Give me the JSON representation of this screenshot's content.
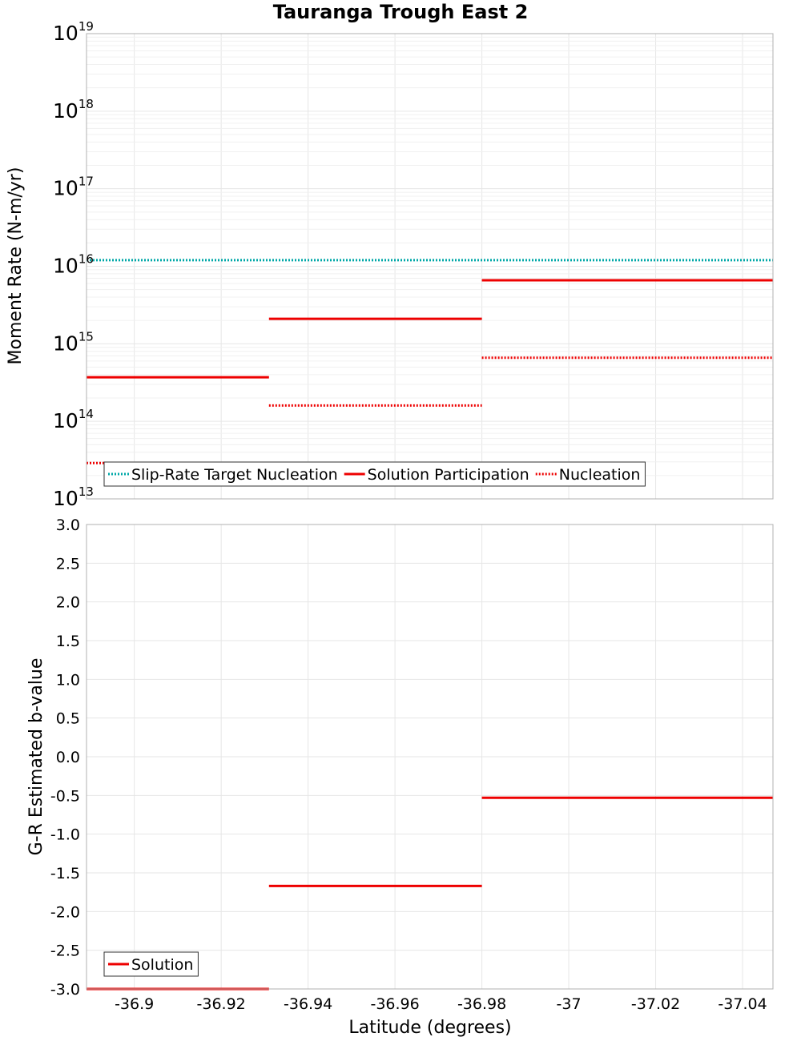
{
  "chart_data": [
    {
      "type": "line",
      "title": "Tauranga Trough East 2",
      "ylabel": "Moment Rate (N-m/yr)",
      "xlabel": "",
      "yscale": "log",
      "ylim": [
        10000000000000.0,
        1e+19
      ],
      "xlim": [
        -36.889,
        -37.047
      ],
      "x_reversed": true,
      "y_ticks": [
        {
          "base": "10",
          "exp": "13",
          "value": 10000000000000.0
        },
        {
          "base": "10",
          "exp": "14",
          "value": 100000000000000.0
        },
        {
          "base": "10",
          "exp": "15",
          "value": 1000000000000000.0
        },
        {
          "base": "10",
          "exp": "16",
          "value": 1e+16
        },
        {
          "base": "10",
          "exp": "17",
          "value": 1e+17
        },
        {
          "base": "10",
          "exp": "18",
          "value": 1e+18
        },
        {
          "base": "10",
          "exp": "19",
          "value": 1e+19
        }
      ],
      "legend_position": "bottom-left",
      "series": [
        {
          "name": "Slip-Rate Target Nucleation",
          "color": "#00a8a8",
          "style": "dotted",
          "segments": [
            {
              "x0": -36.889,
              "x1": -37.047,
              "y": 1.2e+16
            }
          ]
        },
        {
          "name": "Solution Participation",
          "color": "#ee0000",
          "style": "solid",
          "segments": [
            {
              "x0": -36.889,
              "x1": -36.931,
              "y": 370000000000000.0
            },
            {
              "x0": -36.931,
              "x1": -36.98,
              "y": 2100000000000000.0
            },
            {
              "x0": -36.98,
              "x1": -37.047,
              "y": 6600000000000000.0
            }
          ]
        },
        {
          "name": "Nucleation",
          "color": "#ee0000",
          "style": "dotted",
          "segments": [
            {
              "x0": -36.889,
              "x1": -36.931,
              "y": 29000000000000.0
            },
            {
              "x0": -36.931,
              "x1": -36.98,
              "y": 160000000000000.0
            },
            {
              "x0": -36.98,
              "x1": -37.047,
              "y": 660000000000000.0
            }
          ]
        }
      ]
    },
    {
      "type": "line",
      "title": "",
      "ylabel": "G-R Estimated b-value",
      "xlabel": "Latitude (degrees)",
      "yscale": "linear",
      "ylim": [
        -3.0,
        3.0
      ],
      "xlim": [
        -36.889,
        -37.047
      ],
      "x_reversed": true,
      "y_ticks": [
        {
          "label": "3.0",
          "value": 3.0
        },
        {
          "label": "2.5",
          "value": 2.5
        },
        {
          "label": "2.0",
          "value": 2.0
        },
        {
          "label": "1.5",
          "value": 1.5
        },
        {
          "label": "1.0",
          "value": 1.0
        },
        {
          "label": "0.5",
          "value": 0.5
        },
        {
          "label": "0.0",
          "value": 0.0
        },
        {
          "label": "-0.5",
          "value": -0.5
        },
        {
          "label": "-1.0",
          "value": -1.0
        },
        {
          "label": "-1.5",
          "value": -1.5
        },
        {
          "label": "-2.0",
          "value": -2.0
        },
        {
          "label": "-2.5",
          "value": -2.5
        },
        {
          "label": "-3.0",
          "value": -3.0
        }
      ],
      "x_ticks": [
        {
          "label": "-36.9",
          "value": -36.9
        },
        {
          "label": "-36.92",
          "value": -36.92
        },
        {
          "label": "-36.94",
          "value": -36.94
        },
        {
          "label": "-36.96",
          "value": -36.96
        },
        {
          "label": "-36.98",
          "value": -36.98
        },
        {
          "label": "-37",
          "value": -37.0
        },
        {
          "label": "-37.02",
          "value": -37.02
        },
        {
          "label": "-37.04",
          "value": -37.04
        }
      ],
      "legend_position": "bottom-left",
      "series": [
        {
          "name": "Solution",
          "color": "#ee0000",
          "style": "solid",
          "segments": [
            {
              "x0": -36.889,
              "x1": -36.931,
              "y": -3.0
            },
            {
              "x0": -36.931,
              "x1": -36.98,
              "y": -1.67
            },
            {
              "x0": -36.98,
              "x1": -37.047,
              "y": -0.53
            }
          ]
        }
      ]
    }
  ]
}
